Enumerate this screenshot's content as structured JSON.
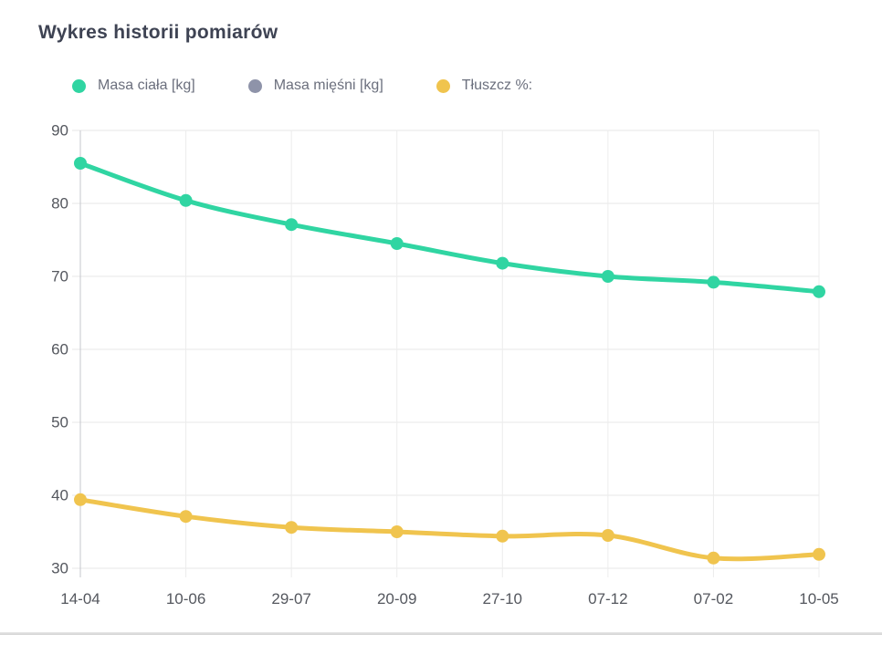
{
  "page": {
    "title": "Wykres historii pomiarów"
  },
  "chart_data": {
    "type": "line",
    "title": "Wykres historii pomiarów",
    "x": [
      "14-04",
      "10-06",
      "29-07",
      "20-09",
      "27-10",
      "07-12",
      "07-02",
      "10-05"
    ],
    "series": [
      {
        "name": "Masa ciała [kg]",
        "color": "#30d5a2",
        "visible": true,
        "values": [
          85.5,
          80.4,
          77.1,
          74.5,
          71.8,
          70.0,
          69.2,
          67.9
        ]
      },
      {
        "name": "Masa mięśni [kg]",
        "color": "#8e93a9",
        "visible": false,
        "values": []
      },
      {
        "name": "Tłuszcz %:",
        "color": "#f0c44e",
        "visible": true,
        "values": [
          39.4,
          37.1,
          35.6,
          35.0,
          34.4,
          34.5,
          31.4,
          31.9
        ]
      }
    ],
    "xlabel": "",
    "ylabel": "",
    "ylim": [
      30,
      90
    ],
    "yticks": [
      30,
      40,
      50,
      60,
      70,
      80,
      90
    ],
    "grid": true,
    "legend_position": "top",
    "colors": {
      "axis_text": "#54575e",
      "grid_line": "#e7e7e7",
      "grid_line_vertical": "#ececec",
      "axis_line": "#c4c7cd",
      "title_text": "#3e4353",
      "legend_text": "#6b6f7d"
    }
  }
}
